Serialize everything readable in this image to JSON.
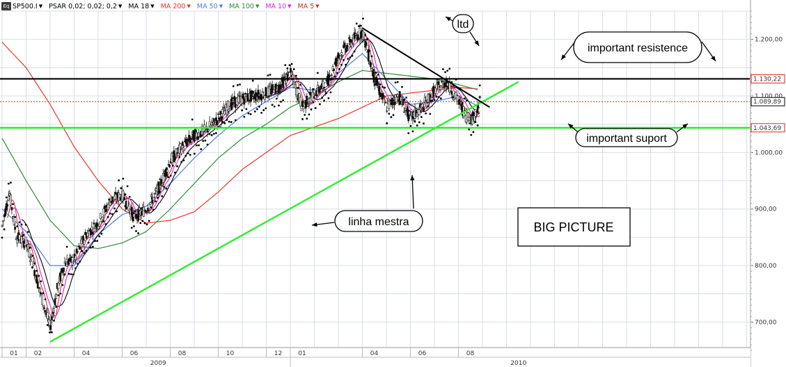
{
  "toolbar": {
    "symbol": "SP500.I",
    "icon": "eq-icon",
    "indicators": [
      {
        "label": "PSAR 0,02; 0,02; 0,2",
        "color": "#333333"
      },
      {
        "label": "MA 18",
        "color": "#333333"
      },
      {
        "label": "MA 200",
        "color": "#e8352a"
      },
      {
        "label": "MA 50",
        "color": "#4a7fe0"
      },
      {
        "label": "MA 100",
        "color": "#2f8a3a"
      },
      {
        "label": "MA 10",
        "color": "#e020d0"
      },
      {
        "label": "MA 5",
        "color": "#c0392b"
      }
    ]
  },
  "colors": {
    "background": "#ffffff",
    "grid": "#d9dde8",
    "resistance": "#000000",
    "support": "#22ee22",
    "trendline_up": "#33ee33",
    "ltd": "#000000",
    "last_price": "#e02020",
    "ma200": "#e8352a",
    "ma100": "#2f8a3a",
    "ma50": "#4a7fe0",
    "ma18": "#000000",
    "ma10": "#e020d0",
    "ma5": "#c0392b",
    "candle": "#111111",
    "psar": "#000000"
  },
  "price_axis": {
    "ticks": [
      "1.200,00",
      "1.100,00",
      "1.000,00",
      "900,00",
      "800,00",
      "700,00"
    ],
    "tick_values": [
      1200,
      1100,
      1000,
      900,
      800,
      700
    ]
  },
  "price_labels": {
    "resistance": "1.130,22",
    "last": "1.089,89",
    "support": "1.043,69"
  },
  "time_axis": {
    "months": [
      "01",
      "02",
      "04",
      "06",
      "08",
      "10",
      "12",
      "01",
      "04",
      "06",
      "08"
    ],
    "years": [
      "2009",
      "2010"
    ]
  },
  "annotations": {
    "ltd": "ltd",
    "resistance": "important resistence",
    "support": "important suport",
    "master_line": "linha mestra",
    "big_picture": "BIG PICTURE"
  },
  "chart_data": {
    "type": "candlestick",
    "symbol": "SP500.I",
    "ylim": [
      655,
      1250
    ],
    "horizontal_levels": [
      {
        "name": "resistance",
        "value": 1130.22
      },
      {
        "name": "last",
        "value": 1089.89
      },
      {
        "name": "support",
        "value": 1043.69
      }
    ],
    "x_month_index": [
      0,
      1,
      3,
      5,
      7,
      9,
      11,
      12,
      15,
      17,
      19
    ],
    "price_path": [
      {
        "t": 0.0,
        "v": 870
      },
      {
        "t": 0.3,
        "v": 930
      },
      {
        "t": 0.6,
        "v": 850
      },
      {
        "t": 1.0,
        "v": 840
      },
      {
        "t": 1.3,
        "v": 800
      },
      {
        "t": 1.6,
        "v": 750
      },
      {
        "t": 2.0,
        "v": 690
      },
      {
        "t": 2.3,
        "v": 760
      },
      {
        "t": 2.6,
        "v": 805
      },
      {
        "t": 3.0,
        "v": 810
      },
      {
        "t": 3.5,
        "v": 855
      },
      {
        "t": 4.0,
        "v": 875
      },
      {
        "t": 4.5,
        "v": 915
      },
      {
        "t": 5.0,
        "v": 925
      },
      {
        "t": 5.5,
        "v": 885
      },
      {
        "t": 6.0,
        "v": 900
      },
      {
        "t": 6.5,
        "v": 935
      },
      {
        "t": 7.0,
        "v": 985
      },
      {
        "t": 7.5,
        "v": 1010
      },
      {
        "t": 8.0,
        "v": 1030
      },
      {
        "t": 8.5,
        "v": 1040
      },
      {
        "t": 9.0,
        "v": 1060
      },
      {
        "t": 9.5,
        "v": 1085
      },
      {
        "t": 10.0,
        "v": 1095
      },
      {
        "t": 10.5,
        "v": 1100
      },
      {
        "t": 11.0,
        "v": 1105
      },
      {
        "t": 11.5,
        "v": 1115
      },
      {
        "t": 12.0,
        "v": 1140
      },
      {
        "t": 12.5,
        "v": 1080
      },
      {
        "t": 13.0,
        "v": 1105
      },
      {
        "t": 13.5,
        "v": 1120
      },
      {
        "t": 14.0,
        "v": 1170
      },
      {
        "t": 14.5,
        "v": 1195
      },
      {
        "t": 15.0,
        "v": 1215
      },
      {
        "t": 15.5,
        "v": 1130
      },
      {
        "t": 16.0,
        "v": 1080
      },
      {
        "t": 16.5,
        "v": 1100
      },
      {
        "t": 17.0,
        "v": 1060
      },
      {
        "t": 17.5,
        "v": 1080
      },
      {
        "t": 18.0,
        "v": 1110
      },
      {
        "t": 18.5,
        "v": 1125
      },
      {
        "t": 19.0,
        "v": 1090
      },
      {
        "t": 19.3,
        "v": 1065
      },
      {
        "t": 19.6,
        "v": 1060
      },
      {
        "t": 19.9,
        "v": 1090
      }
    ],
    "ma200_path": [
      {
        "t": 0.0,
        "v": 1195
      },
      {
        "t": 1.0,
        "v": 1150
      },
      {
        "t": 2.0,
        "v": 1085
      },
      {
        "t": 3.0,
        "v": 1010
      },
      {
        "t": 4.0,
        "v": 950
      },
      {
        "t": 5.0,
        "v": 900
      },
      {
        "t": 6.0,
        "v": 875
      },
      {
        "t": 7.0,
        "v": 880
      },
      {
        "t": 8.0,
        "v": 895
      },
      {
        "t": 9.0,
        "v": 930
      },
      {
        "t": 10.0,
        "v": 970
      },
      {
        "t": 11.0,
        "v": 1000
      },
      {
        "t": 12.0,
        "v": 1030
      },
      {
        "t": 13.0,
        "v": 1045
      },
      {
        "t": 14.0,
        "v": 1060
      },
      {
        "t": 15.0,
        "v": 1080
      },
      {
        "t": 16.0,
        "v": 1100
      },
      {
        "t": 17.0,
        "v": 1105
      },
      {
        "t": 18.0,
        "v": 1110
      },
      {
        "t": 19.0,
        "v": 1115
      },
      {
        "t": 19.9,
        "v": 1112
      }
    ],
    "ma100_path": [
      {
        "t": 0.0,
        "v": 1025
      },
      {
        "t": 1.0,
        "v": 950
      },
      {
        "t": 2.0,
        "v": 880
      },
      {
        "t": 3.0,
        "v": 835
      },
      {
        "t": 4.0,
        "v": 830
      },
      {
        "t": 5.0,
        "v": 840
      },
      {
        "t": 6.0,
        "v": 860
      },
      {
        "t": 7.0,
        "v": 900
      },
      {
        "t": 8.0,
        "v": 945
      },
      {
        "t": 9.0,
        "v": 990
      },
      {
        "t": 10.0,
        "v": 1025
      },
      {
        "t": 11.0,
        "v": 1050
      },
      {
        "t": 12.0,
        "v": 1080
      },
      {
        "t": 13.0,
        "v": 1100
      },
      {
        "t": 14.0,
        "v": 1125
      },
      {
        "t": 15.0,
        "v": 1145
      },
      {
        "t": 16.0,
        "v": 1140
      },
      {
        "t": 17.0,
        "v": 1135
      },
      {
        "t": 18.0,
        "v": 1130
      },
      {
        "t": 19.0,
        "v": 1120
      },
      {
        "t": 19.9,
        "v": 1110
      }
    ],
    "ma50_path": [
      {
        "t": 0.0,
        "v": 900
      },
      {
        "t": 1.0,
        "v": 860
      },
      {
        "t": 2.0,
        "v": 800
      },
      {
        "t": 3.0,
        "v": 800
      },
      {
        "t": 4.0,
        "v": 855
      },
      {
        "t": 5.0,
        "v": 890
      },
      {
        "t": 6.0,
        "v": 905
      },
      {
        "t": 7.0,
        "v": 945
      },
      {
        "t": 8.0,
        "v": 990
      },
      {
        "t": 9.0,
        "v": 1030
      },
      {
        "t": 10.0,
        "v": 1065
      },
      {
        "t": 11.0,
        "v": 1090
      },
      {
        "t": 12.0,
        "v": 1115
      },
      {
        "t": 13.0,
        "v": 1110
      },
      {
        "t": 14.0,
        "v": 1140
      },
      {
        "t": 15.0,
        "v": 1175
      },
      {
        "t": 16.0,
        "v": 1130
      },
      {
        "t": 17.0,
        "v": 1085
      },
      {
        "t": 18.0,
        "v": 1090
      },
      {
        "t": 19.0,
        "v": 1100
      },
      {
        "t": 19.9,
        "v": 1080
      }
    ],
    "trendline_support": [
      {
        "t": 2.0,
        "v": 665
      },
      {
        "t": 21.5,
        "v": 1125
      }
    ],
    "trendline_ltd": [
      {
        "t": 15.0,
        "v": 1220
      },
      {
        "t": 20.3,
        "v": 1080
      }
    ]
  }
}
